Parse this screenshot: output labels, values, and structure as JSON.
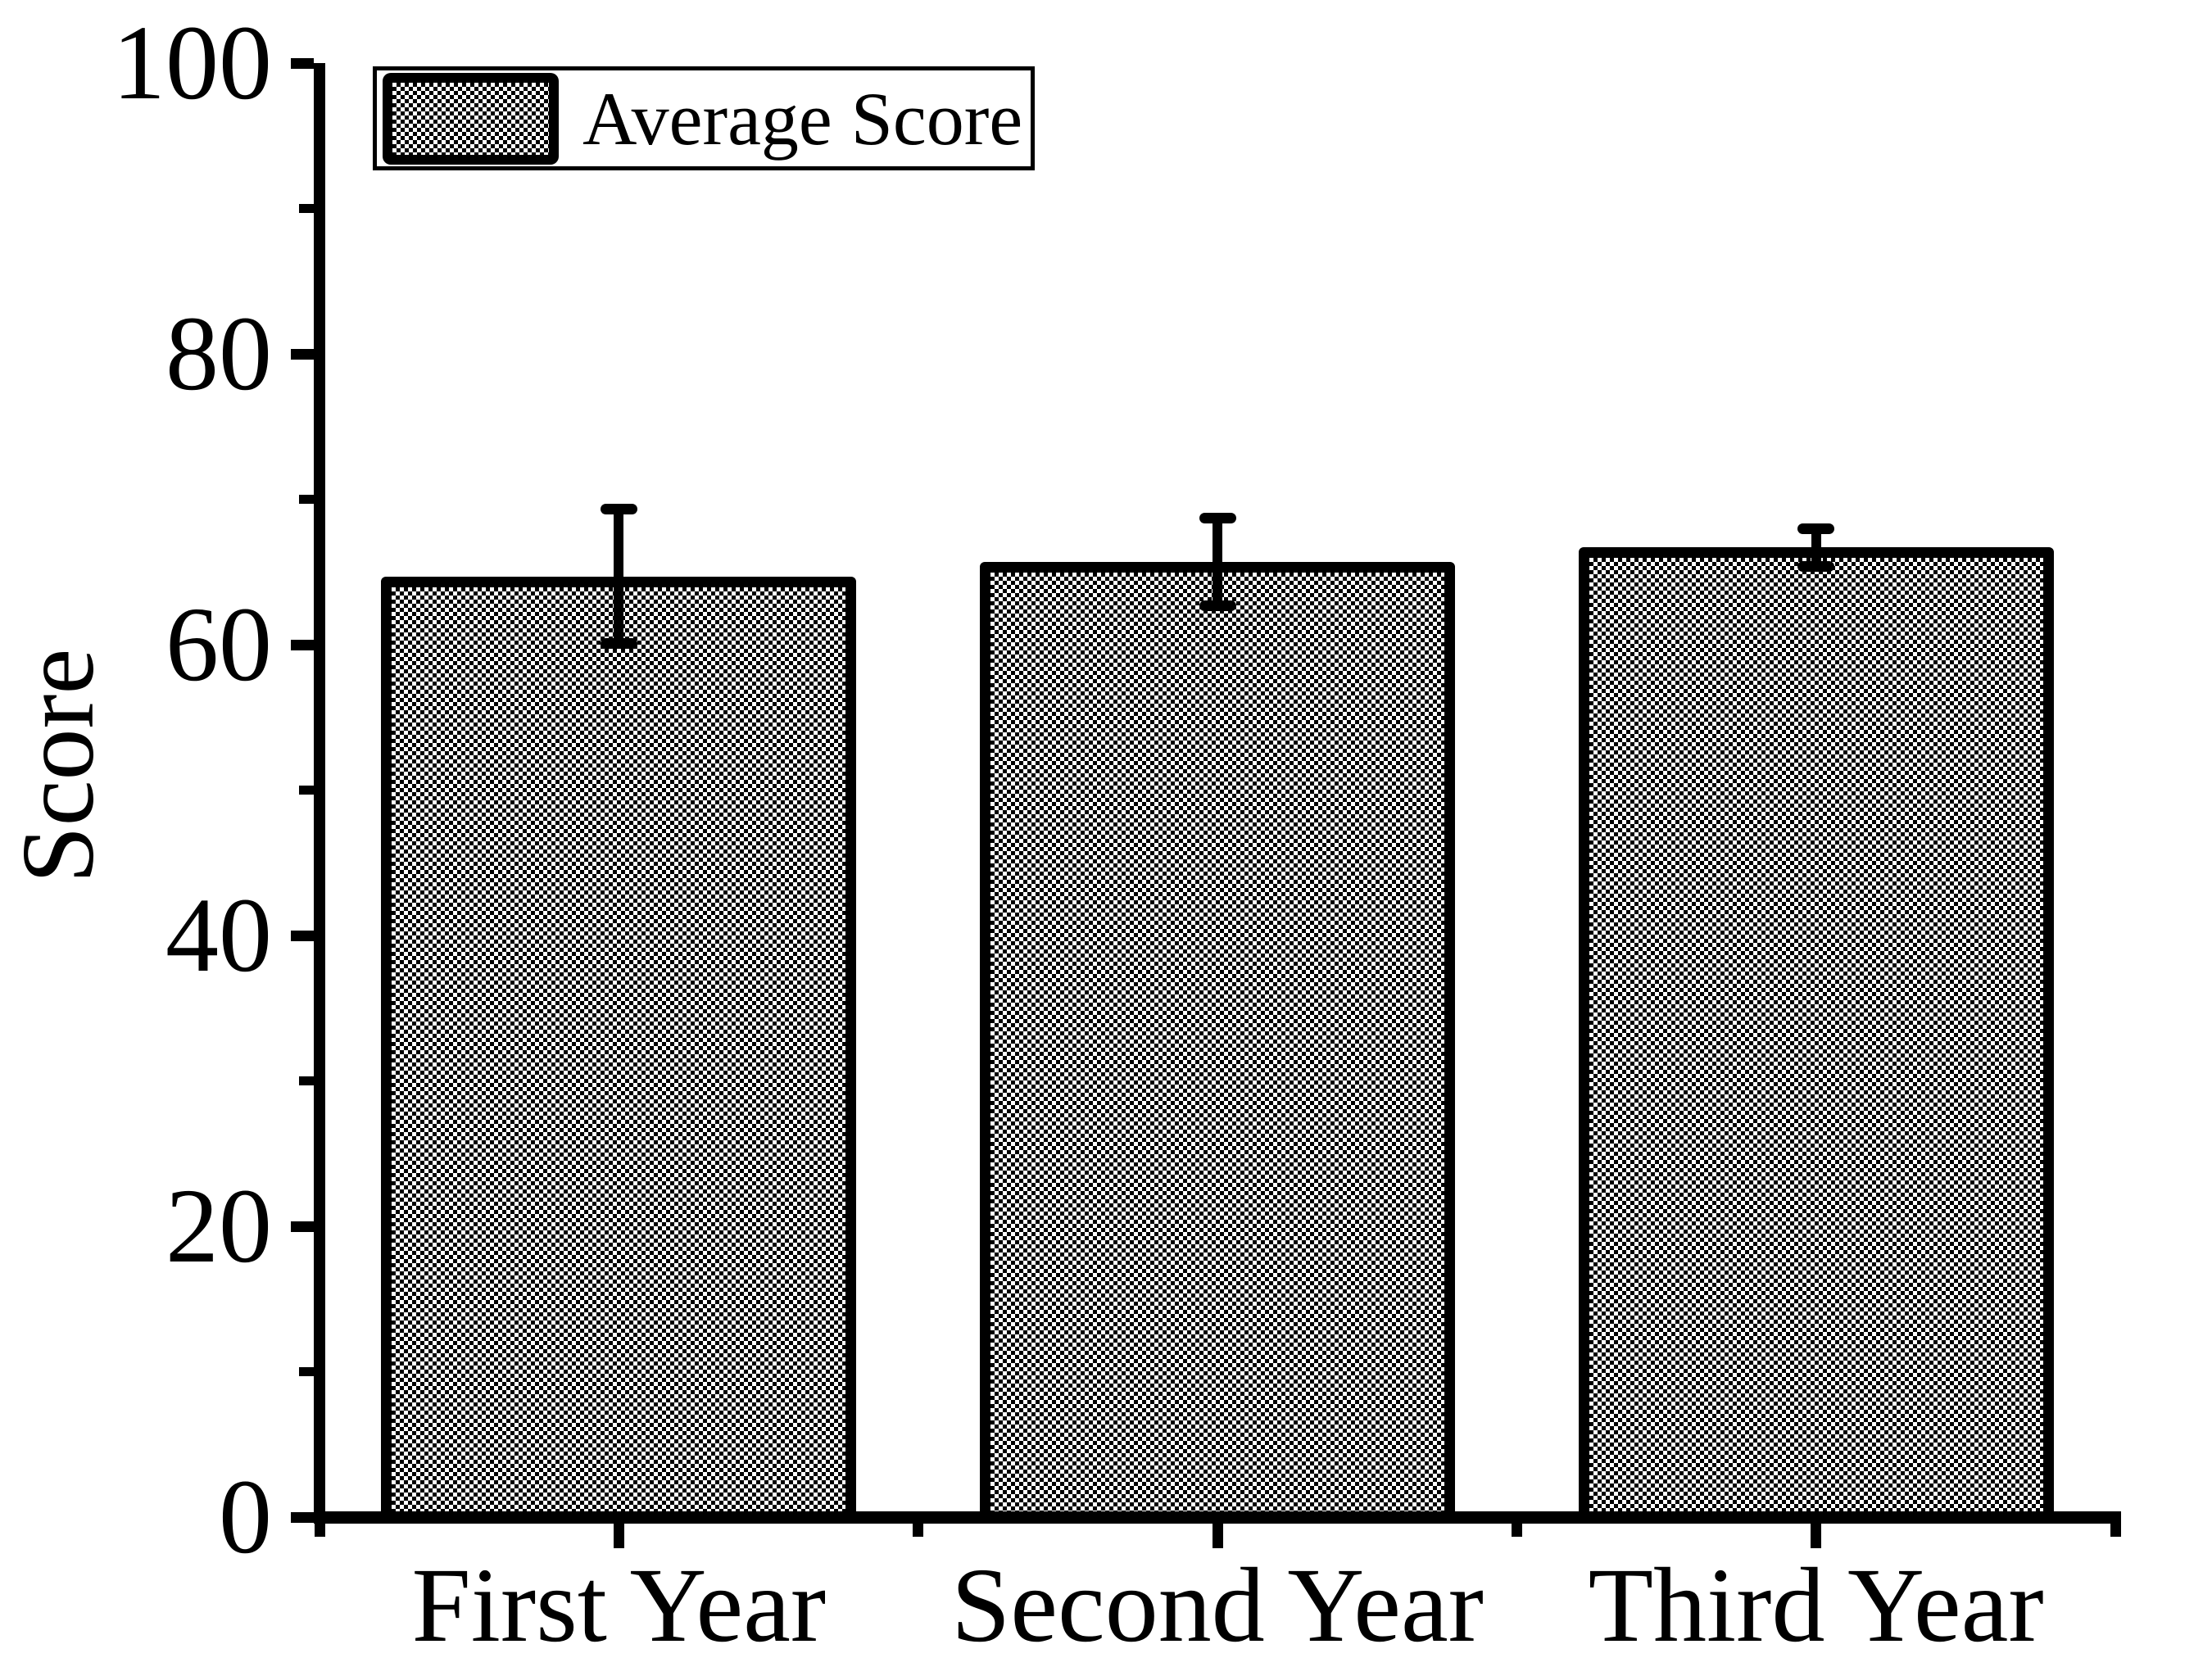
{
  "chart_data": {
    "type": "bar",
    "categories": [
      "First Year",
      "Second Year",
      "Third Year"
    ],
    "series": [
      {
        "name": "Average Score",
        "values": [
          64.7,
          65.7,
          66.7
        ],
        "errors": [
          4.6,
          3.0,
          1.3
        ]
      }
    ],
    "title": "",
    "xlabel": "",
    "ylabel": "Score",
    "ylim": [
      0,
      100
    ],
    "ytick_step": 20,
    "yminor_step": 10,
    "y_tick_labels": [
      "0",
      "20",
      "40",
      "60",
      "80",
      "100"
    ],
    "grid": false,
    "legend_position": "top-left",
    "bar_style": {
      "fill_pattern": "fine-checkerboard",
      "pattern_color": "#000000",
      "outline_color": "#000000",
      "background": "#ffffff",
      "bar_width_fraction": 0.795
    }
  },
  "legend": {
    "label": "Average Score"
  },
  "y_axis": {
    "title": "Score"
  }
}
